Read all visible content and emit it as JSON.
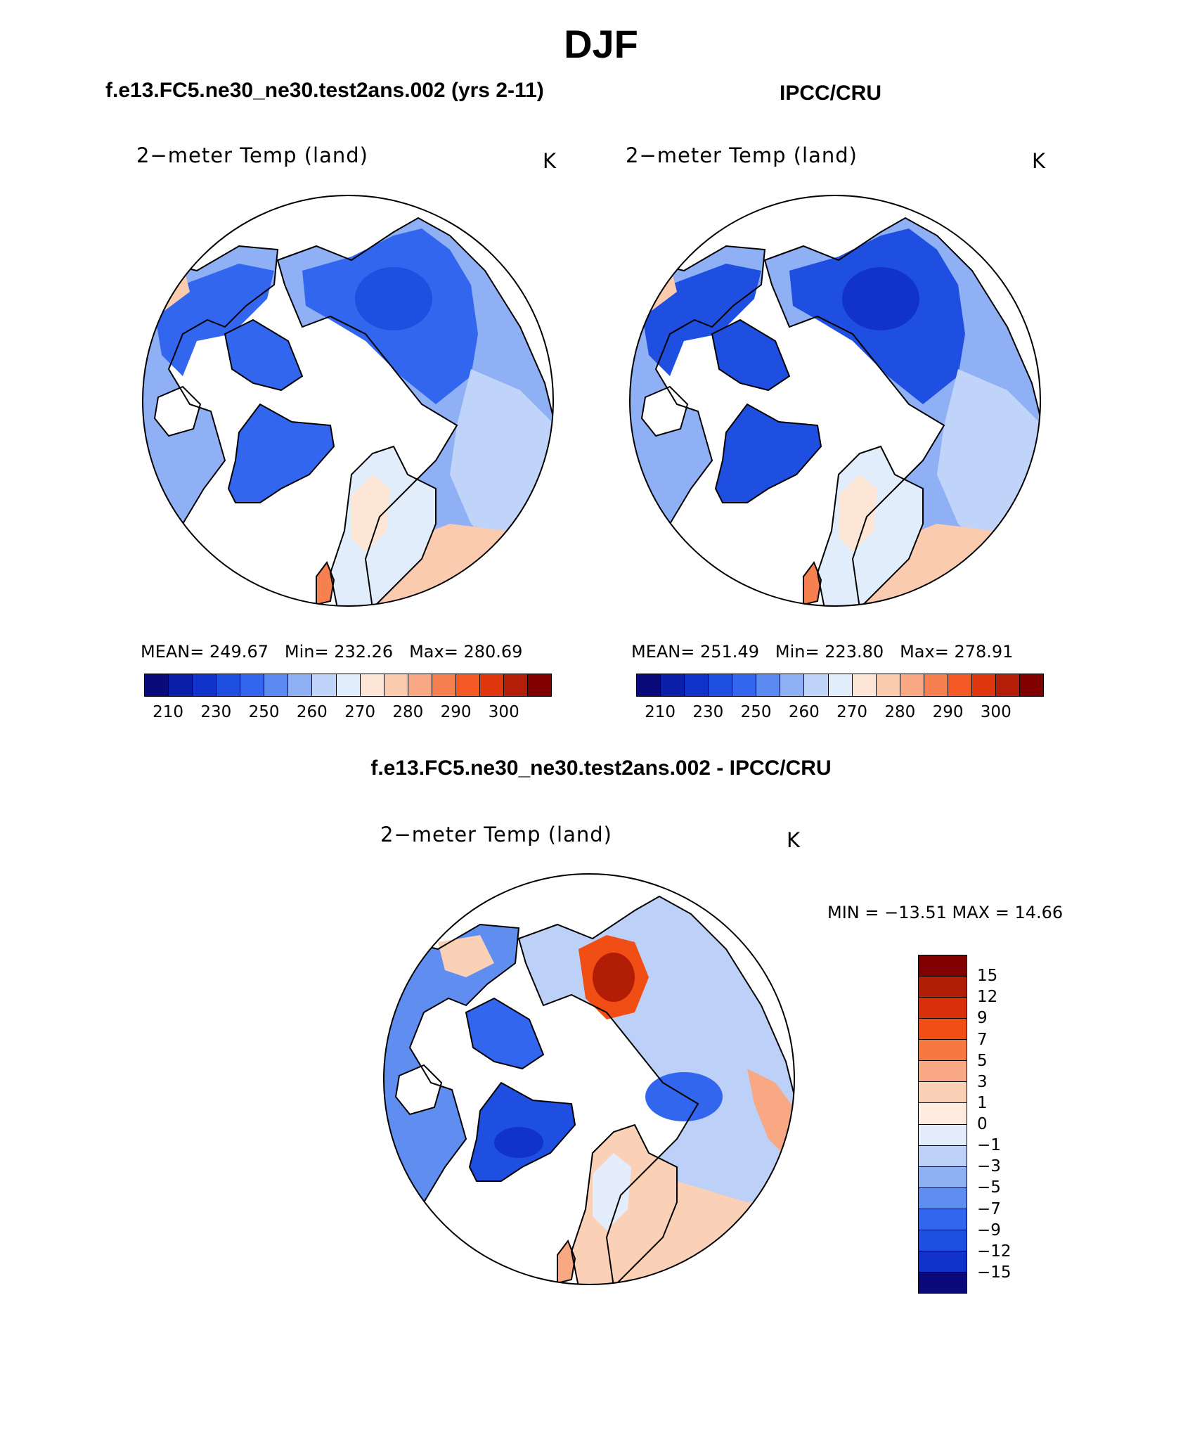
{
  "title": "DJF",
  "top_left": {
    "heading": "f.e13.FC5.ne30_ne30.test2ans.002 (yrs 2-11)",
    "variable": "2−meter Temp (land)",
    "units": "K",
    "stats": {
      "mean_label": "MEAN=",
      "mean": "249.67",
      "min_label": "Min=",
      "min": "232.26",
      "max_label": "Max=",
      "max": "280.69"
    }
  },
  "top_right": {
    "heading": "IPCC/CRU",
    "variable": "2−meter Temp (land)",
    "units": "K",
    "stats": {
      "mean_label": "MEAN=",
      "mean": "251.49",
      "min_label": "Min=",
      "min": "223.80",
      "max_label": "Max=",
      "max": "278.91"
    }
  },
  "diff": {
    "heading": "f.e13.FC5.ne30_ne30.test2ans.002 - IPCC/CRU",
    "variable": "2−meter Temp (land)",
    "units": "K",
    "minmax": "MIN = −13.51  MAX =   14.66"
  },
  "colorbar_abs": {
    "colors": [
      "#0a0a7a",
      "#0b1fa8",
      "#1133cc",
      "#1f4fe0",
      "#3366ee",
      "#5b8bf0",
      "#8fb0f5",
      "#c0d4fa",
      "#e2edfb",
      "#fde6d6",
      "#fbcbb0",
      "#f8a882",
      "#f6804f",
      "#f55a24",
      "#e0380e",
      "#b41e08",
      "#800000"
    ],
    "tick_labels": [
      "210",
      "230",
      "250",
      "260",
      "270",
      "280",
      "290",
      "300"
    ]
  },
  "colorbar_diff": {
    "colors": [
      "#800000",
      "#b11e05",
      "#d9300c",
      "#f04e15",
      "#f77740",
      "#f9a884",
      "#fad0b7",
      "#fdecdf",
      "#e3edfb",
      "#bcd0f8",
      "#8fb1f4",
      "#5f8ef0",
      "#3366ee",
      "#1f4fe0",
      "#1133cc",
      "#0a0a7a"
    ],
    "tick_labels": [
      "15",
      "12",
      "9",
      "7",
      "5",
      "3",
      "1",
      "0",
      "−1",
      "−3",
      "−5",
      "−7",
      "−9",
      "−12",
      "−15"
    ]
  },
  "chart_data": [
    {
      "type": "heatmap",
      "title": "2−meter Temp (land)",
      "subtitle": "f.e13.FC5.ne30_ne30.test2ans.002 (yrs 2-11)",
      "units": "K",
      "projection": "north polar stereographic",
      "mean": 249.67,
      "min": 232.26,
      "max": 280.69,
      "levels": [
        210,
        220,
        230,
        240,
        250,
        255,
        260,
        265,
        270,
        275,
        280,
        285,
        290,
        295,
        300
      ]
    },
    {
      "type": "heatmap",
      "title": "2−meter Temp (land)",
      "subtitle": "IPCC/CRU",
      "units": "K",
      "projection": "north polar stereographic",
      "mean": 251.49,
      "min": 223.8,
      "max": 278.91,
      "levels": [
        210,
        220,
        230,
        240,
        250,
        255,
        260,
        265,
        270,
        275,
        280,
        285,
        290,
        295,
        300
      ]
    },
    {
      "type": "heatmap",
      "title": "2−meter Temp (land)",
      "subtitle": "f.e13.FC5.ne30_ne30.test2ans.002 - IPCC/CRU",
      "units": "K",
      "projection": "north polar stereographic",
      "min": -13.51,
      "max": 14.66,
      "levels": [
        -15,
        -12,
        -9,
        -7,
        -5,
        -3,
        -1,
        0,
        1,
        3,
        5,
        7,
        9,
        12,
        15
      ]
    }
  ]
}
